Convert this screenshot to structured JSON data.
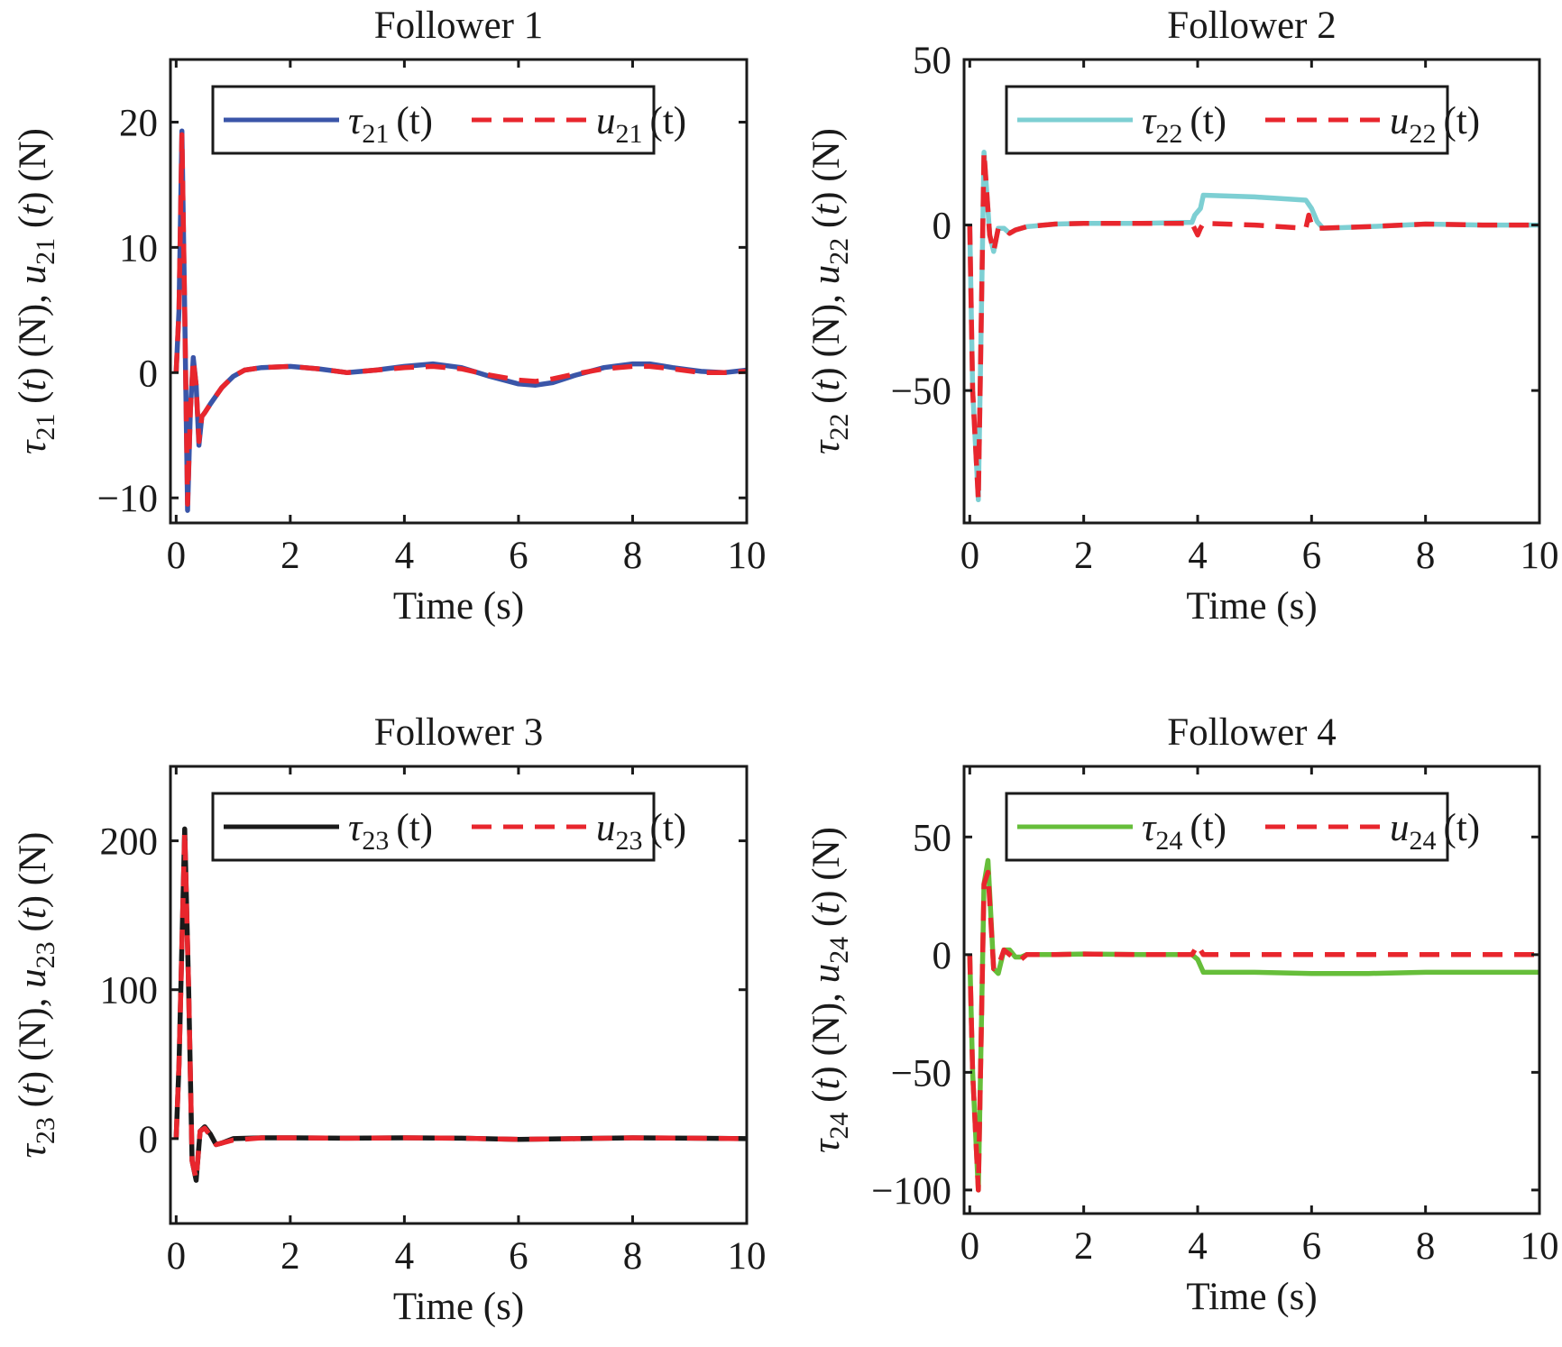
{
  "chart_data": [
    {
      "type": "line",
      "title": "Follower 1",
      "xlabel": "Time (s)",
      "ylabel": {
        "tau_sym": "τ",
        "tau_sub": "21",
        "u_sym": "u",
        "u_sub": "21",
        "t": "t",
        "unit": "(N)"
      },
      "xlim": [
        -0.1,
        10
      ],
      "ylim": [
        -12,
        25
      ],
      "xticks": [
        0,
        2,
        4,
        6,
        8,
        10
      ],
      "xtick_labels": [
        "0",
        "2",
        "4",
        "6",
        "8",
        "10"
      ],
      "yticks": [
        -10,
        0,
        10,
        20
      ],
      "ytick_labels": [
        "−10",
        "0",
        "10",
        "20"
      ],
      "grid": false,
      "legend": {
        "placement": "top-right",
        "entries": [
          {
            "sym": "τ",
            "sub": "21",
            "arg": "(t)",
            "style": "solid"
          },
          {
            "sym": "u",
            "sub": "21",
            "arg": "(t)",
            "style": "dashed"
          }
        ]
      },
      "series": [
        {
          "name": "τ21(t)",
          "color": "#3a55a8",
          "style": "solid",
          "x": [
            0,
            0.05,
            0.1,
            0.15,
            0.2,
            0.25,
            0.3,
            0.35,
            0.4,
            0.45,
            0.5,
            0.6,
            0.8,
            1.0,
            1.2,
            1.5,
            2.0,
            2.5,
            3.0,
            3.5,
            4.0,
            4.5,
            5.0,
            5.5,
            6.0,
            6.3,
            6.6,
            7.0,
            7.5,
            8.0,
            8.3,
            8.7,
            9.2,
            9.6,
            10
          ],
          "y": [
            0,
            5,
            19.3,
            5,
            -11,
            -3,
            1.2,
            -1,
            -5.8,
            -3.5,
            -3.2,
            -2.5,
            -1.2,
            -0.3,
            0.2,
            0.4,
            0.5,
            0.3,
            0.0,
            0.2,
            0.5,
            0.7,
            0.4,
            -0.3,
            -0.9,
            -1.0,
            -0.8,
            -0.2,
            0.4,
            0.7,
            0.7,
            0.4,
            0.1,
            0.0,
            0.2
          ]
        },
        {
          "name": "u21(t)",
          "color": "#e8262d",
          "style": "dashed",
          "x": [
            0,
            0.05,
            0.1,
            0.15,
            0.2,
            0.25,
            0.3,
            0.35,
            0.4,
            0.45,
            0.5,
            0.6,
            0.8,
            1.0,
            1.2,
            1.5,
            2.0,
            2.5,
            3.0,
            3.5,
            4.0,
            4.5,
            5.0,
            5.5,
            6.0,
            6.3,
            6.6,
            7.0,
            7.5,
            8.0,
            8.3,
            8.7,
            9.2,
            9.6,
            10
          ],
          "y": [
            0,
            5,
            19,
            5,
            -10.5,
            -3,
            1.0,
            -1,
            -5.5,
            -3.5,
            -3.2,
            -2.5,
            -1.2,
            -0.3,
            0.2,
            0.4,
            0.5,
            0.3,
            0.0,
            0.2,
            0.4,
            0.5,
            0.3,
            -0.2,
            -0.6,
            -0.7,
            -0.5,
            -0.1,
            0.3,
            0.5,
            0.5,
            0.3,
            0.0,
            0.0,
            0.1
          ]
        }
      ]
    },
    {
      "type": "line",
      "title": "Follower 2",
      "xlabel": "Time (s)",
      "ylabel": {
        "tau_sym": "τ",
        "tau_sub": "22",
        "u_sym": "u",
        "u_sub": "22",
        "t": "t",
        "unit": "(N)"
      },
      "xlim": [
        -0.1,
        10
      ],
      "ylim": [
        -90,
        50
      ],
      "xticks": [
        0,
        2,
        4,
        6,
        8,
        10
      ],
      "xtick_labels": [
        "0",
        "2",
        "4",
        "6",
        "8",
        "10"
      ],
      "yticks": [
        -50,
        0,
        50
      ],
      "ytick_labels": [
        "−50",
        "0",
        "50"
      ],
      "grid": false,
      "legend": {
        "placement": "top-right",
        "entries": [
          {
            "sym": "τ",
            "sub": "22",
            "arg": "(t)",
            "style": "solid"
          },
          {
            "sym": "u",
            "sub": "22",
            "arg": "(t)",
            "style": "dashed"
          }
        ]
      },
      "series": [
        {
          "name": "τ22(t)",
          "color": "#7dcfd3",
          "style": "solid",
          "x": [
            0,
            0.05,
            0.15,
            0.25,
            0.35,
            0.42,
            0.5,
            0.6,
            0.7,
            0.8,
            1.0,
            1.5,
            2.0,
            3.0,
            3.9,
            3.95,
            4.05,
            4.1,
            5.0,
            5.9,
            6.0,
            6.1,
            6.2,
            7.0,
            8.0,
            9.0,
            10
          ],
          "y": [
            0,
            -50,
            -83,
            22,
            -3,
            -8,
            -1,
            -1,
            -2.5,
            -1.5,
            -0.5,
            0.3,
            0.5,
            0.5,
            0.8,
            3,
            5,
            9,
            8.5,
            7.5,
            5,
            1,
            -1,
            -0.5,
            0.3,
            0,
            0
          ]
        },
        {
          "name": "u22(t)",
          "color": "#e8262d",
          "style": "dashed",
          "x": [
            0,
            0.05,
            0.15,
            0.25,
            0.35,
            0.42,
            0.5,
            0.6,
            0.7,
            0.8,
            1.0,
            1.5,
            2.0,
            3.0,
            3.9,
            4.0,
            4.05,
            4.1,
            5.0,
            5.9,
            5.95,
            6.0,
            6.1,
            7.0,
            8.0,
            9.0,
            10
          ],
          "y": [
            0,
            -50,
            -83,
            22,
            -3,
            -8,
            -1,
            -1,
            -2.5,
            -1.5,
            -0.5,
            0.3,
            0.5,
            0.5,
            0.5,
            -3,
            -1,
            0.5,
            0,
            -1,
            3,
            0,
            -1,
            -0.5,
            0.3,
            0,
            0
          ]
        }
      ]
    },
    {
      "type": "line",
      "title": "Follower 3",
      "xlabel": "Time (s)",
      "ylabel": {
        "tau_sym": "τ",
        "tau_sub": "23",
        "u_sym": "u",
        "u_sub": "23",
        "t": "t",
        "unit": "(N)"
      },
      "xlim": [
        -0.1,
        10
      ],
      "ylim": [
        -57,
        250
      ],
      "xticks": [
        0,
        2,
        4,
        6,
        8,
        10
      ],
      "xtick_labels": [
        "0",
        "2",
        "4",
        "6",
        "8",
        "10"
      ],
      "yticks": [
        0,
        100,
        200
      ],
      "ytick_labels": [
        "0",
        "100",
        "200"
      ],
      "grid": false,
      "legend": {
        "placement": "top-right",
        "entries": [
          {
            "sym": "τ",
            "sub": "23",
            "arg": "(t)",
            "style": "solid"
          },
          {
            "sym": "u",
            "sub": "23",
            "arg": "(t)",
            "style": "dashed"
          }
        ]
      },
      "series": [
        {
          "name": "τ23(t)",
          "color": "#1a1a1a",
          "style": "solid",
          "x": [
            0,
            0.05,
            0.15,
            0.22,
            0.28,
            0.35,
            0.42,
            0.5,
            0.6,
            0.7,
            0.8,
            1.0,
            1.5,
            2.0,
            3.0,
            4.0,
            5.0,
            6.0,
            7.0,
            8.0,
            9.0,
            10
          ],
          "y": [
            0,
            50,
            208,
            100,
            -15,
            -28,
            5,
            8,
            3,
            -4,
            -3,
            0,
            0.5,
            0.5,
            0.3,
            0.5,
            0.3,
            -0.5,
            0,
            0.5,
            0.3,
            0
          ]
        },
        {
          "name": "u23(t)",
          "color": "#e8262d",
          "style": "dashed",
          "x": [
            0,
            0.05,
            0.15,
            0.22,
            0.28,
            0.35,
            0.42,
            0.5,
            0.6,
            0.7,
            0.8,
            1.0,
            1.5,
            2.0,
            3.0,
            4.0,
            5.0,
            6.0,
            7.0,
            8.0,
            9.0,
            10
          ],
          "y": [
            0,
            50,
            206,
            100,
            -15,
            -27,
            5,
            7,
            2,
            -4,
            -3,
            -1,
            0.5,
            0.5,
            0.3,
            0.5,
            0.3,
            -0.5,
            0,
            0.5,
            0.3,
            0
          ]
        }
      ]
    },
    {
      "type": "line",
      "title": "Follower 4",
      "xlabel": "Time (s)",
      "ylabel": {
        "tau_sym": "τ",
        "tau_sub": "24",
        "u_sym": "u",
        "u_sub": "24",
        "t": "t",
        "unit": "(N)"
      },
      "xlim": [
        -0.1,
        10
      ],
      "ylim": [
        -110,
        80
      ],
      "xticks": [
        0,
        2,
        4,
        6,
        8,
        10
      ],
      "xtick_labels": [
        "0",
        "2",
        "4",
        "6",
        "8",
        "10"
      ],
      "yticks": [
        -100,
        -50,
        0,
        50
      ],
      "ytick_labels": [
        "−100",
        "−50",
        "0",
        "50"
      ],
      "grid": false,
      "legend": {
        "placement": "top-right",
        "entries": [
          {
            "sym": "τ",
            "sub": "24",
            "arg": "(t)",
            "style": "solid"
          },
          {
            "sym": "u",
            "sub": "24",
            "arg": "(t)",
            "style": "dashed"
          }
        ]
      },
      "series": [
        {
          "name": "τ24(t)",
          "color": "#66be3a",
          "style": "solid",
          "x": [
            0,
            0.05,
            0.15,
            0.25,
            0.32,
            0.42,
            0.5,
            0.6,
            0.7,
            0.8,
            0.9,
            1.0,
            1.5,
            2.0,
            3.0,
            3.9,
            4.0,
            4.1,
            5.0,
            6.0,
            7.0,
            8.0,
            9.0,
            10
          ],
          "y": [
            0,
            -50,
            -100,
            30,
            40,
            -6,
            -8,
            2,
            2,
            -1,
            -1,
            0,
            0,
            0.3,
            0,
            0,
            -2,
            -7.5,
            -7.5,
            -8,
            -8,
            -7.5,
            -7.5,
            -7.5
          ]
        },
        {
          "name": "u24(t)",
          "color": "#e8262d",
          "style": "dashed",
          "x": [
            0,
            0.05,
            0.15,
            0.25,
            0.32,
            0.42,
            0.5,
            0.6,
            0.7,
            0.8,
            0.9,
            1.0,
            1.5,
            2.0,
            3.0,
            3.9,
            4.0,
            4.1,
            5.0,
            6.0,
            7.0,
            8.0,
            9.0,
            10
          ],
          "y": [
            0,
            -50,
            -100,
            30,
            35,
            -6,
            -5,
            2,
            0,
            -2,
            -2,
            0,
            0,
            0.3,
            0,
            0,
            4,
            0,
            0,
            0,
            0,
            0,
            0,
            0
          ]
        }
      ]
    }
  ]
}
